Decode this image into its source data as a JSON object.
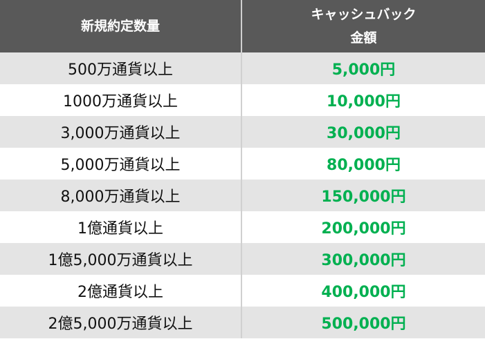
{
  "header": {
    "col1": "新規約定数量",
    "col2_line1": "キャッシュバック",
    "col2_line2": "金額"
  },
  "colors": {
    "header_bg": "#595959",
    "alt_row": "#e4e4e4",
    "amount": "#00b050"
  },
  "rows": [
    {
      "volume": "500万通貨以上",
      "amount": "5,000円"
    },
    {
      "volume": "1000万通貨以上",
      "amount": "10,000円"
    },
    {
      "volume": "3,000万通貨以上",
      "amount": "30,000円"
    },
    {
      "volume": "5,000万通貨以上",
      "amount": "80,000円"
    },
    {
      "volume": "8,000万通貨以上",
      "amount": "150,000円"
    },
    {
      "volume": "1億通貨以上",
      "amount": "200,000円"
    },
    {
      "volume": "1億5,000万通貨以上",
      "amount": "300,000円"
    },
    {
      "volume": "2億通貨以上",
      "amount": "400,000円"
    },
    {
      "volume": "2億5,000万通貨以上",
      "amount": "500,000円"
    }
  ]
}
